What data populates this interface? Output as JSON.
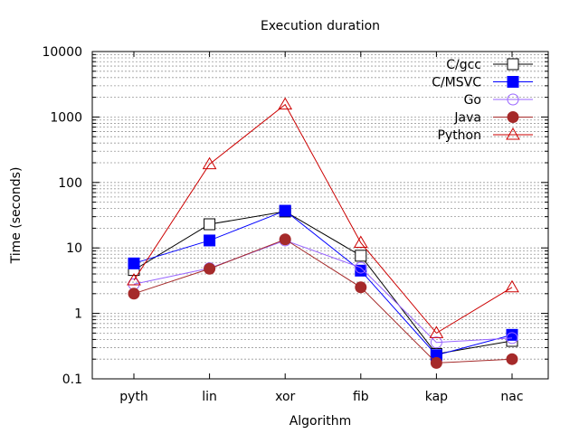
{
  "chart_data": {
    "type": "line",
    "title": "Execution duration",
    "xlabel": "Algorithm",
    "ylabel": "Time (seconds)",
    "yscale": "log",
    "ylim": [
      0.1,
      10000
    ],
    "grid": "horizontal-dashed",
    "legend_position": "top-right",
    "categories": [
      "pyth",
      "lin",
      "xor",
      "fib",
      "kap",
      "nac"
    ],
    "y_ticks": [
      {
        "value": 0.1,
        "label": "0.1"
      },
      {
        "value": 1,
        "label": "1"
      },
      {
        "value": 10,
        "label": "10"
      },
      {
        "value": 100,
        "label": "100"
      },
      {
        "value": 1000,
        "label": "1000"
      },
      {
        "value": 10000,
        "label": "10000"
      }
    ],
    "series": [
      {
        "name": "C/gcc",
        "color": "#000000",
        "marker": "square-open",
        "values": [
          4.6,
          23,
          36,
          7.6,
          0.24,
          0.38
        ]
      },
      {
        "name": "C/MSVC",
        "color": "#0000ff",
        "marker": "square-filled",
        "values": [
          5.8,
          13,
          37,
          4.5,
          0.23,
          0.47
        ]
      },
      {
        "name": "Go",
        "color": "#9966ff",
        "marker": "circle-open",
        "values": [
          2.8,
          4.9,
          13,
          5.0,
          0.36,
          0.42
        ]
      },
      {
        "name": "Java",
        "color": "#a52a2a",
        "marker": "circle-filled",
        "values": [
          2.0,
          4.8,
          13.5,
          2.5,
          0.175,
          0.2
        ]
      },
      {
        "name": "Python",
        "color": "#cc0000",
        "marker": "triangle-open",
        "values": [
          3.2,
          190,
          1550,
          12,
          0.5,
          2.5
        ]
      }
    ]
  }
}
